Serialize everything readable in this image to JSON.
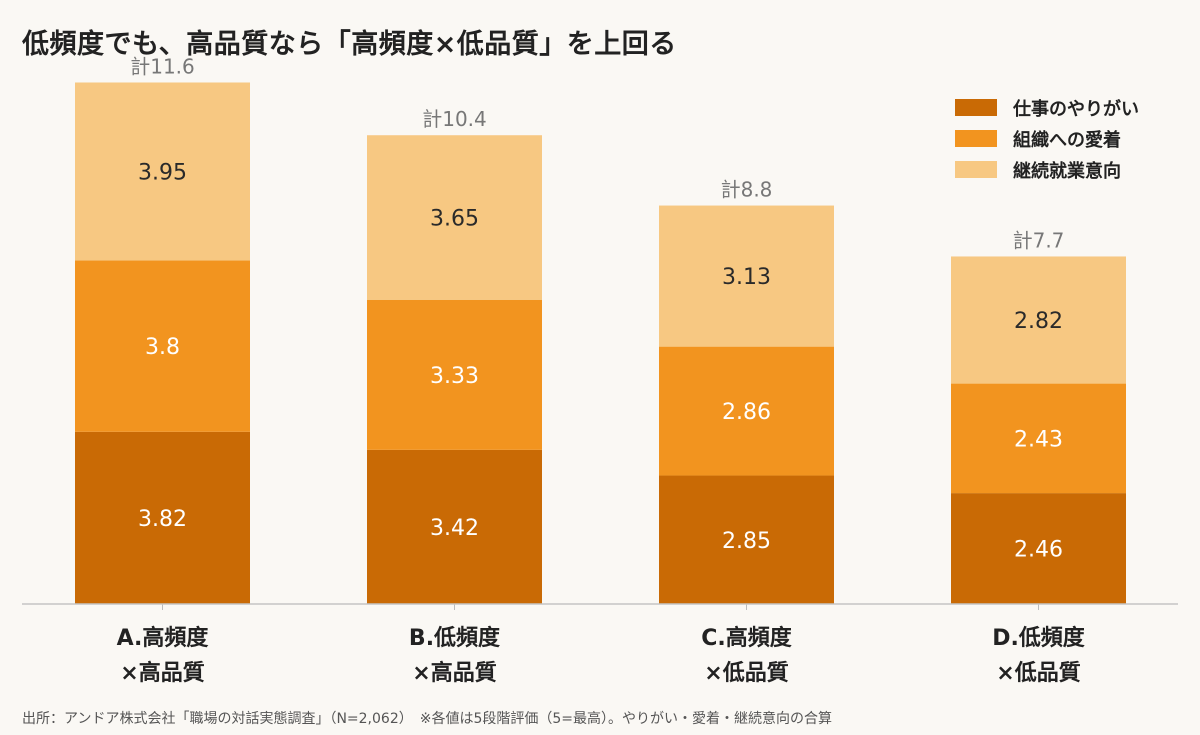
{
  "title": "低頻度でも、高品質なら「高頻度×低品質」を上回る",
  "source": "出所：アンドア株式会社「職場の対話実態調査」（N=2,062）　※各値は5段階評価（5=最高）。やりがい・愛着・継続意向の合算",
  "chart_data": {
    "type": "bar",
    "stacked": true,
    "title": "低頻度でも、高品質なら「高頻度×低品質」を上回る",
    "categories": [
      [
        "A.高頻度",
        "×高品質"
      ],
      [
        "B.低頻度",
        "×高品質"
      ],
      [
        "C.高頻度",
        "×低品質"
      ],
      [
        "D.低頻度",
        "×低品質"
      ]
    ],
    "series": [
      {
        "name": "仕事のやりがい",
        "color": "#c96a05",
        "values": [
          3.82,
          3.42,
          2.85,
          2.46
        ]
      },
      {
        "name": "組織への愛着",
        "color": "#f2941f",
        "values": [
          3.8,
          3.33,
          2.86,
          2.43
        ]
      },
      {
        "name": "継続就業意向",
        "color": "#f7c882",
        "values": [
          3.95,
          3.65,
          3.13,
          2.82
        ]
      }
    ],
    "totals": [
      "計11.6",
      "計10.4",
      "計8.8",
      "計7.7"
    ],
    "value_labels": [
      [
        "3.82",
        "3.42",
        "2.85",
        "2.46"
      ],
      [
        "3.8",
        "3.33",
        "2.86",
        "2.43"
      ],
      [
        "3.95",
        "3.65",
        "3.13",
        "2.82"
      ]
    ],
    "ylim": [
      0,
      13.4
    ],
    "grid": false,
    "legend_position": "top-right",
    "xlabel": "",
    "ylabel": ""
  }
}
